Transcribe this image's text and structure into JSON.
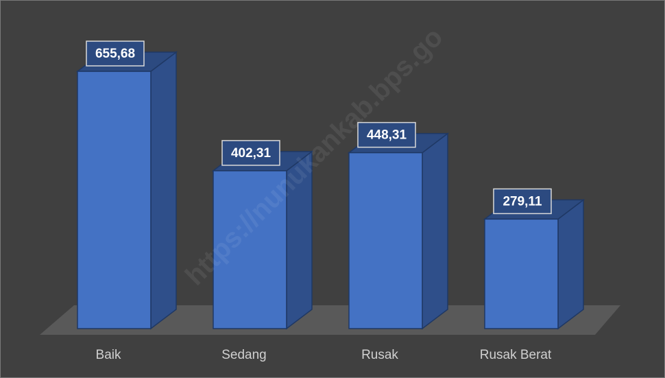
{
  "chart_data": {
    "type": "bar3d",
    "categories": [
      "Baik",
      "Sedang",
      "Rusak",
      "Rusak Berat"
    ],
    "values": [
      655.68,
      402.31,
      448.31,
      279.11
    ],
    "value_labels": [
      "655,68",
      "402,31",
      "448,31",
      "279,11"
    ],
    "color": "#4472c4",
    "watermark": "https://nunukankab.bps.go"
  }
}
